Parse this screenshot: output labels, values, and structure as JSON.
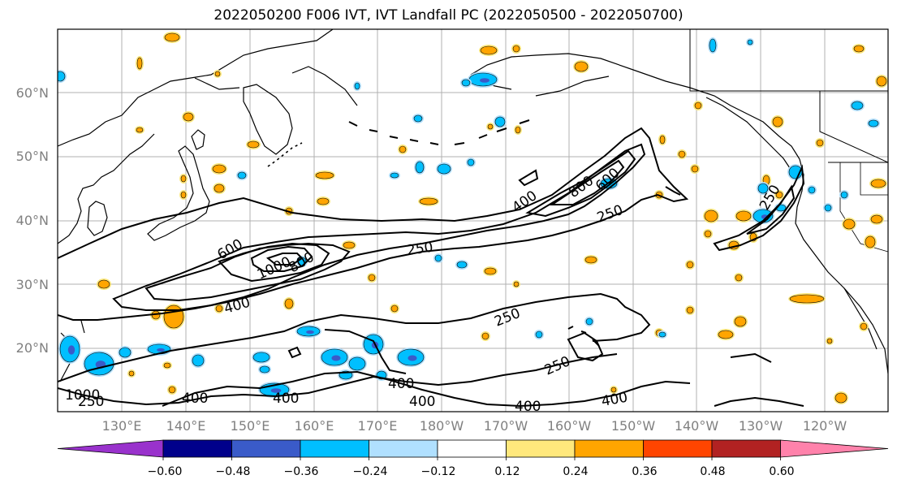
{
  "title": "2022050200 F006 IVT, IVT Landfall PC (2022050500 - 2022050700)",
  "lat_labels": [
    "60°N",
    "50°N",
    "40°N",
    "30°N",
    "20°N"
  ],
  "lon_labels": [
    "130°E",
    "140°E",
    "150°E",
    "160°E",
    "170°E",
    "180°W",
    "170°W",
    "160°W",
    "150°W",
    "140°W",
    "130°W",
    "120°W"
  ],
  "contour_labels": [
    "250",
    "250",
    "250",
    "250",
    "250",
    "250",
    "400",
    "400",
    "400",
    "400",
    "400",
    "400",
    "400",
    "400",
    "600",
    "600",
    "800",
    "1000",
    "800",
    "1000"
  ],
  "colorbar": {
    "ticks": [
      "−0.60",
      "−0.48",
      "−0.36",
      "−0.24",
      "−0.12",
      "0.12",
      "0.24",
      "0.36",
      "0.48",
      "0.60"
    ],
    "colors": [
      "#9932cc",
      "#00008b",
      "#3a5bc9",
      "#00bfff",
      "#b0e0ff",
      "#ffffff",
      "#ffe87c",
      "#ffa500",
      "#ff4500",
      "#b22222",
      "#ff82ab"
    ]
  },
  "colors": {
    "contour": "#000000",
    "grid": "#b0b0b0",
    "coast": "#000000",
    "pos_light": "#ffe87c",
    "pos_mid": "#ffa500",
    "neg_light": "#b0e0ff",
    "neg_mid": "#00bfff",
    "neg_dark": "#3a5bc9"
  }
}
